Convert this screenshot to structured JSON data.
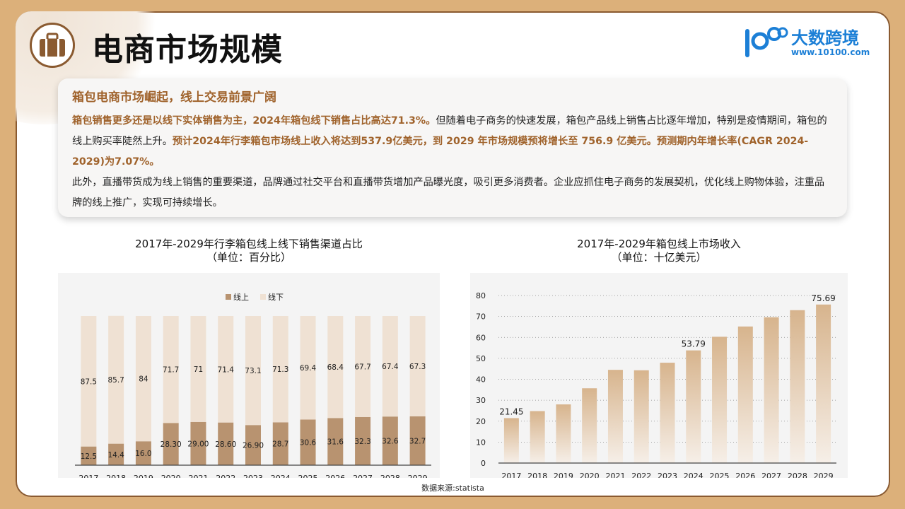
{
  "page": {
    "title": "电商市场规模",
    "source": "数据来源:statista"
  },
  "logo": {
    "name": "大数跨境",
    "url": "www.10100.com"
  },
  "summary": {
    "heading": "箱包电商市场崛起，线上交易前景广阔",
    "p1_a": "箱包销售更多还是以线下实体销售为主，2024年箱包线下销售占比高达71.3%。",
    "p1_b": "但随着电子商务的快速发展，箱包产品线上销售占比逐年增加，特别是疫情期间，箱包的线上购买率陡然上升。",
    "p1_c": "预计2024年行李箱包市场线上收入将达到537.9亿美元，到 2029 年市场规模预将增长至 756.9 亿美元。预测期内年增长率(CAGR 2024-2029)为7.07%。",
    "p2": "此外，直播带货成为线上销售的重要渠道，品牌通过社交平台和直播带货增加产品曝光度，吸引更多消费者。企业应抓住电子商务的发展契机，优化线上购物体验，注重品牌的线上推广，实现可持续增长。"
  },
  "chart_data": [
    {
      "type": "bar",
      "stacked": true,
      "title": "2017年-2029年行李箱包线上线下销售渠道占比",
      "subtitle": "（单位：百分比）",
      "categories": [
        "2017",
        "2018",
        "2019",
        "2020",
        "2021",
        "2022",
        "2023",
        "2024",
        "2025",
        "2026",
        "2027",
        "2028",
        "2029"
      ],
      "series": [
        {
          "name": "线上",
          "color": "#b89370",
          "values": [
            12.5,
            14.4,
            16.0,
            28.3,
            29.0,
            28.6,
            26.9,
            28.7,
            30.6,
            31.6,
            32.3,
            32.6,
            32.7
          ],
          "labels": [
            "12.5",
            "14.4",
            "16.0",
            "28.30",
            "29.00",
            "28.60",
            "26.90",
            "28.7",
            "30.6",
            "31.6",
            "32.3",
            "32.6",
            "32.7"
          ]
        },
        {
          "name": "线下",
          "color": "#efe1d3",
          "values": [
            87.5,
            85.7,
            84,
            71.7,
            71,
            71.4,
            73.1,
            71.3,
            69.4,
            68.4,
            67.7,
            67.4,
            67.3
          ],
          "labels": [
            "87.5",
            "85.7",
            "84",
            "71.7",
            "71",
            "71.4",
            "73.1",
            "71.3",
            "69.4",
            "68.4",
            "67.7",
            "67.4",
            "67.3"
          ]
        }
      ],
      "ylim": [
        0,
        100
      ],
      "legend": "top-center"
    },
    {
      "type": "bar",
      "title": "2017年-2029年箱包线上市场收入",
      "subtitle": "（单位：十亿美元）",
      "categories": [
        "2017",
        "2018",
        "2019",
        "2020",
        "2021",
        "2022",
        "2023",
        "2024",
        "2025",
        "2026",
        "2027",
        "2028",
        "2029"
      ],
      "values": [
        21.45,
        24.8,
        28.0,
        35.7,
        44.5,
        44.3,
        47.9,
        53.79,
        60.3,
        65.2,
        69.6,
        73.0,
        75.69
      ],
      "data_labels": {
        "0": "21.45",
        "7": "53.79",
        "12": "75.69"
      },
      "yticks": [
        "0",
        "10",
        "20",
        "30",
        "40",
        "50",
        "60",
        "70",
        "80"
      ],
      "ylim": [
        0,
        80
      ],
      "grid": "dotted horizontal",
      "bar_gradient": [
        "#d7b48d",
        "#f6efe8"
      ]
    }
  ]
}
